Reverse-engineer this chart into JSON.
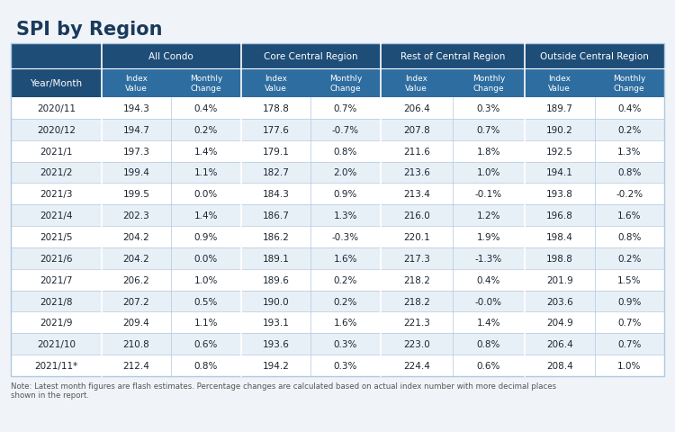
{
  "title": "SPI by Region",
  "note": "Note: Latest month figures are flash estimates. Percentage changes are calculated based on actual index number with more decimal places shown in the report.",
  "header_bg": "#1e4d78",
  "subheader_bg": "#2e6da0",
  "row_bg_odd": "#ffffff",
  "row_bg_even": "#e8f0f7",
  "header_text_color": "#ffffff",
  "data_text_color": "#1a252f",
  "border_color": "#b0c8e0",
  "title_color": "#1a3a5c",
  "bg_color": "#f0f4f8",
  "rows": [
    [
      "2020/11",
      "194.3",
      "0.4%",
      "178.8",
      "0.7%",
      "206.4",
      "0.3%",
      "189.7",
      "0.4%"
    ],
    [
      "2020/12",
      "194.7",
      "0.2%",
      "177.6",
      "-0.7%",
      "207.8",
      "0.7%",
      "190.2",
      "0.2%"
    ],
    [
      "2021/1",
      "197.3",
      "1.4%",
      "179.1",
      "0.8%",
      "211.6",
      "1.8%",
      "192.5",
      "1.3%"
    ],
    [
      "2021/2",
      "199.4",
      "1.1%",
      "182.7",
      "2.0%",
      "213.6",
      "1.0%",
      "194.1",
      "0.8%"
    ],
    [
      "2021/3",
      "199.5",
      "0.0%",
      "184.3",
      "0.9%",
      "213.4",
      "-0.1%",
      "193.8",
      "-0.2%"
    ],
    [
      "2021/4",
      "202.3",
      "1.4%",
      "186.7",
      "1.3%",
      "216.0",
      "1.2%",
      "196.8",
      "1.6%"
    ],
    [
      "2021/5",
      "204.2",
      "0.9%",
      "186.2",
      "-0.3%",
      "220.1",
      "1.9%",
      "198.4",
      "0.8%"
    ],
    [
      "2021/6",
      "204.2",
      "0.0%",
      "189.1",
      "1.6%",
      "217.3",
      "-1.3%",
      "198.8",
      "0.2%"
    ],
    [
      "2021/7",
      "206.2",
      "1.0%",
      "189.6",
      "0.2%",
      "218.2",
      "0.4%",
      "201.9",
      "1.5%"
    ],
    [
      "2021/8",
      "207.2",
      "0.5%",
      "190.0",
      "0.2%",
      "218.2",
      "-0.0%",
      "203.6",
      "0.9%"
    ],
    [
      "2021/9",
      "209.4",
      "1.1%",
      "193.1",
      "1.6%",
      "221.3",
      "1.4%",
      "204.9",
      "0.7%"
    ],
    [
      "2021/10",
      "210.8",
      "0.6%",
      "193.6",
      "0.3%",
      "223.0",
      "0.8%",
      "206.4",
      "0.7%"
    ],
    [
      "2021/11*",
      "212.4",
      "0.8%",
      "194.2",
      "0.3%",
      "224.4",
      "0.6%",
      "208.4",
      "1.0%"
    ]
  ]
}
